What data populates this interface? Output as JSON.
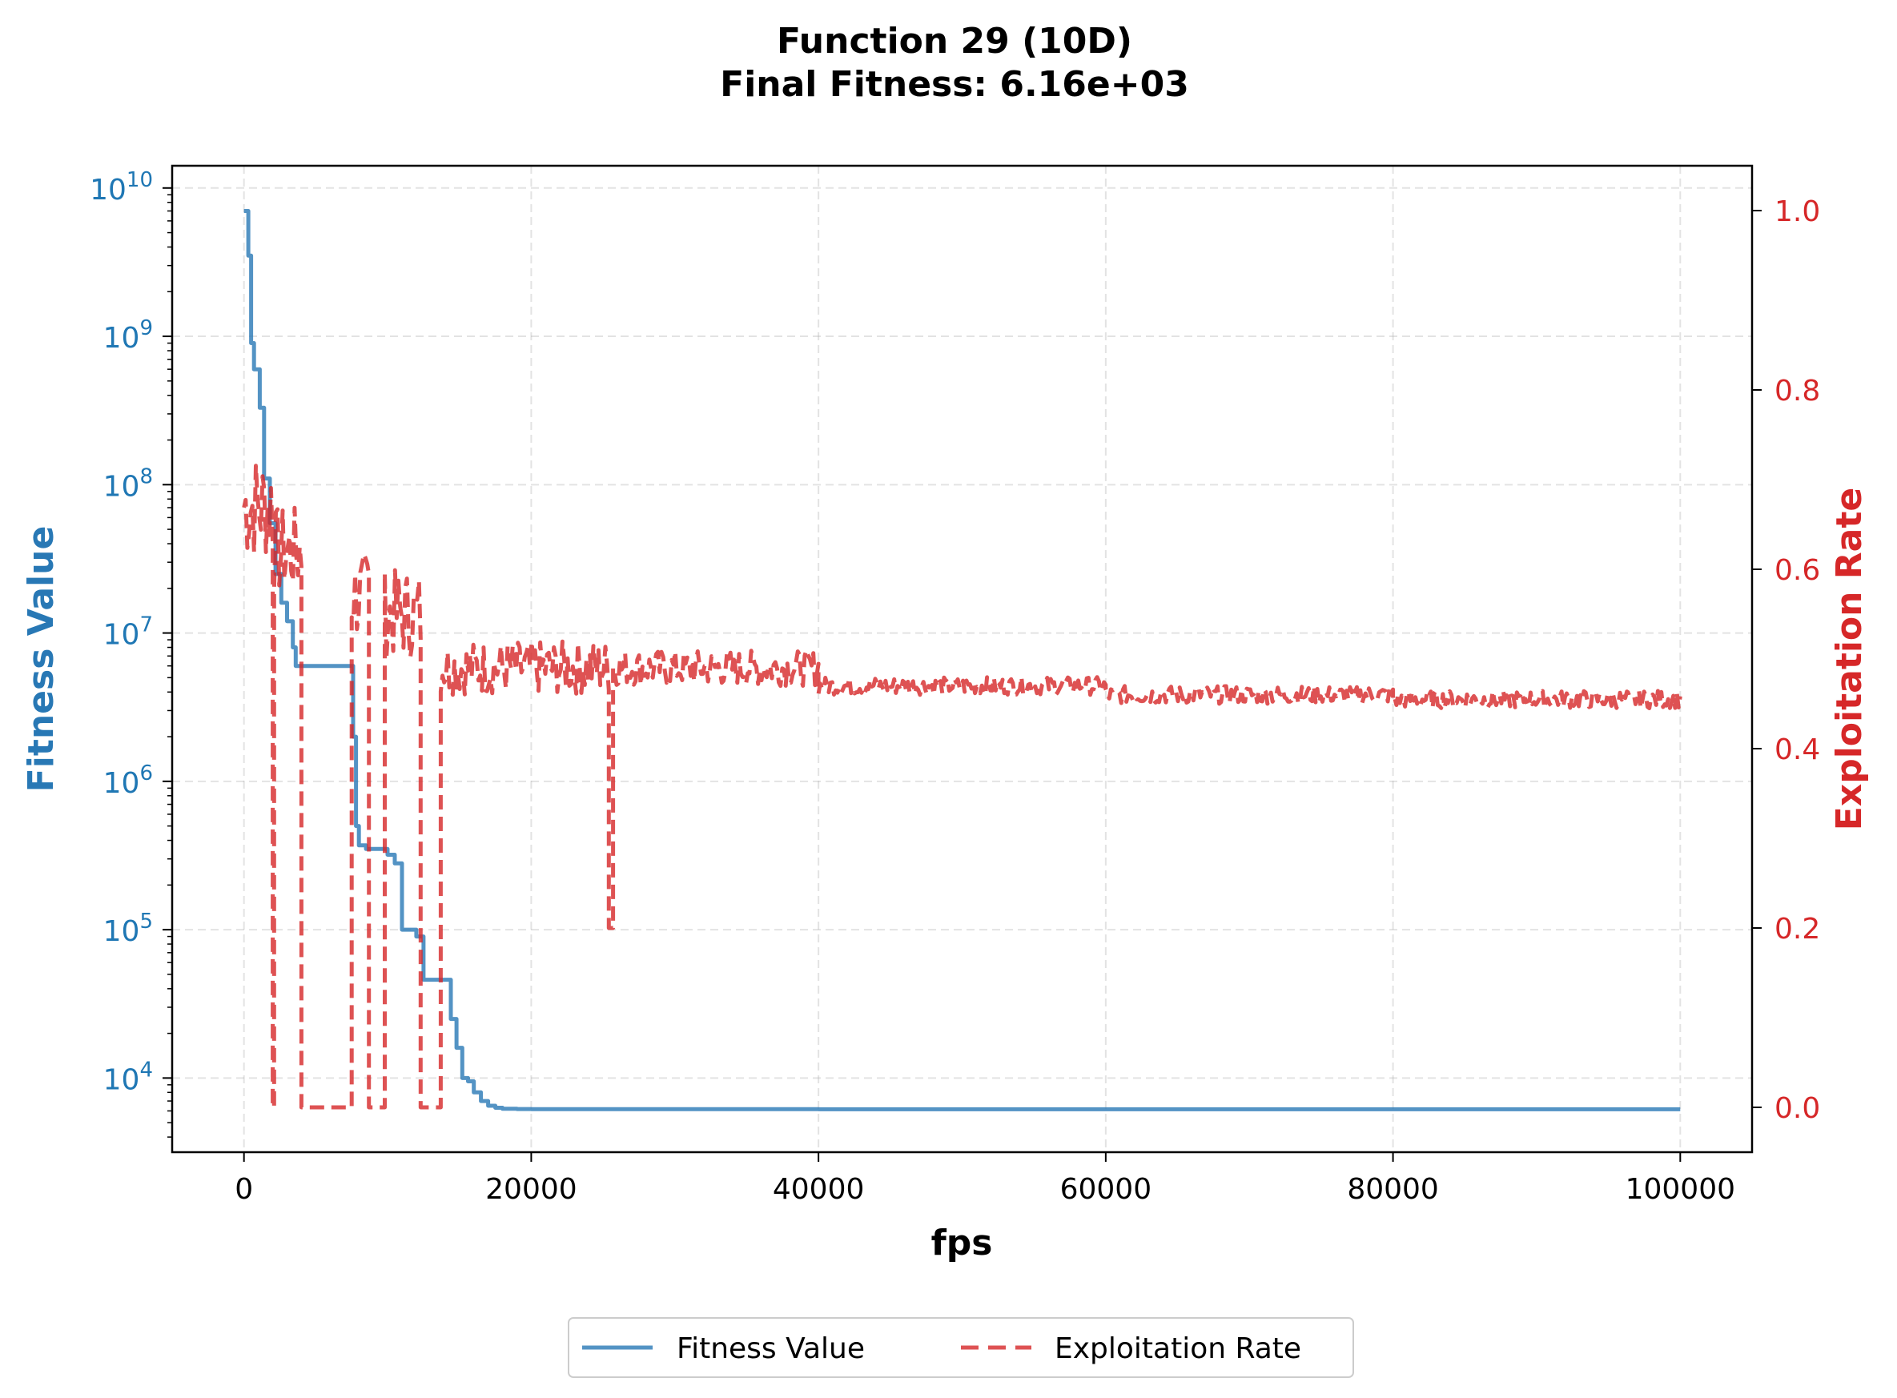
{
  "chart_data": {
    "type": "line",
    "title": "Function 29 (10D)",
    "subtitle": "Final Fitness: 6.16e+03",
    "xlabel": "fps",
    "ylabel_left": "Fitness Value",
    "ylabel_right": "Exploitation Rate",
    "xlim": [
      -5000,
      105000
    ],
    "xticks": [
      0,
      20000,
      40000,
      60000,
      80000,
      100000
    ],
    "xtick_labels": [
      "0",
      "20000",
      "40000",
      "60000",
      "80000",
      "100000"
    ],
    "ylim_left_log10": [
      3.5,
      10.15
    ],
    "yscale_left": "log",
    "yticks_left_exp": [
      4,
      5,
      6,
      7,
      8,
      9,
      10
    ],
    "ylim_right": [
      -0.05,
      1.05
    ],
    "yticks_right": [
      0.0,
      0.2,
      0.4,
      0.6,
      0.8,
      1.0
    ],
    "ytick_labels_right": [
      "0.0",
      "0.2",
      "0.4",
      "0.6",
      "0.8",
      "1.0"
    ],
    "grid": true,
    "legend_placement": "bottom-center, below plot",
    "colors": {
      "fitness": "#2878b5",
      "exploitation": "#d62728",
      "left_axis": "#1f77b4",
      "right_axis": "#d62728"
    },
    "series": [
      {
        "name": "Fitness Value",
        "axis": "left",
        "style": "solid",
        "x": [
          0,
          300,
          500,
          700,
          1100,
          1400,
          1800,
          2200,
          2600,
          3000,
          3400,
          3600,
          4000,
          5000,
          7500,
          7600,
          7800,
          8000,
          8500,
          9000,
          9500,
          10000,
          10500,
          11000,
          12000,
          12500,
          13000,
          13500,
          14000,
          14400,
          14800,
          15200,
          15600,
          16000,
          16500,
          17000,
          17500,
          18000,
          19000,
          20000,
          25000,
          40000,
          60000,
          80000,
          100000
        ],
        "y": [
          7000000000,
          3500000000,
          900000000,
          600000000,
          330000000,
          110000000,
          55000000,
          25000000,
          16000000,
          12000000,
          8000000,
          6000000,
          6000000,
          6000000,
          6000000,
          2000000,
          500000,
          370000,
          350000,
          350000,
          350000,
          320000,
          280000,
          100000,
          90000,
          46000,
          46000,
          46000,
          46000,
          25000,
          16000,
          10000,
          9500,
          8000,
          7000,
          6500,
          6300,
          6200,
          6180,
          6170,
          6165,
          6160,
          6160,
          6160,
          6160
        ]
      },
      {
        "name": "Exploitation Rate",
        "axis": "right",
        "style": "dashed",
        "segments": [
          {
            "x_start": 0,
            "x_end": 2000,
            "y_center": 0.67,
            "amplitude": 0.06
          },
          {
            "x_start": 2000,
            "x_end": 2100,
            "y_center": 0.0,
            "amplitude": 0.0
          },
          {
            "x_start": 2100,
            "x_end": 4000,
            "y_center": 0.62,
            "amplitude": 0.05
          },
          {
            "x_start": 4000,
            "x_end": 7500,
            "y_center": 0.0,
            "amplitude": 0.0
          },
          {
            "x_start": 7500,
            "x_end": 8700,
            "y_center": 0.57,
            "amplitude": 0.05
          },
          {
            "x_start": 8700,
            "x_end": 9800,
            "y_center": 0.0,
            "amplitude": 0.0
          },
          {
            "x_start": 9800,
            "x_end": 12300,
            "y_center": 0.55,
            "amplitude": 0.05
          },
          {
            "x_start": 12300,
            "x_end": 13700,
            "y_center": 0.0,
            "amplitude": 0.0
          },
          {
            "x_start": 13700,
            "x_end": 25400,
            "y_center": 0.49,
            "amplitude": 0.03
          },
          {
            "x_start": 25400,
            "x_end": 25700,
            "y_center": 0.2,
            "amplitude": 0.0
          },
          {
            "x_start": 25700,
            "x_end": 40000,
            "y_center": 0.49,
            "amplitude": 0.02
          },
          {
            "x_start": 40000,
            "x_end": 60000,
            "y_center": 0.47,
            "amplitude": 0.01
          },
          {
            "x_start": 60000,
            "x_end": 80000,
            "y_center": 0.46,
            "amplitude": 0.01
          },
          {
            "x_start": 80000,
            "x_end": 100000,
            "y_center": 0.455,
            "amplitude": 0.01
          }
        ]
      }
    ]
  }
}
